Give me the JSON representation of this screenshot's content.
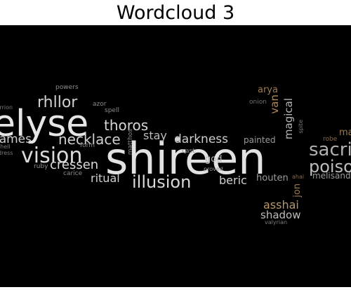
{
  "title": "Wordcloud 3",
  "words": [
    {
      "text": "shireen",
      "color": "#e2e2e2"
    },
    {
      "text": "elyse",
      "color": "#e6e6e6"
    },
    {
      "text": "vision",
      "color": "#dcdcdc"
    },
    {
      "text": "rhllor",
      "color": "#cfcfcf"
    },
    {
      "text": "necklace",
      "color": "#cfcfcf"
    },
    {
      "text": "thoros",
      "color": "#d6d6d6"
    },
    {
      "text": "cressen",
      "color": "#d9d9d9"
    },
    {
      "text": "illusion",
      "color": "#d9d9d9"
    },
    {
      "text": "darkness",
      "color": "#cfcfcf"
    },
    {
      "text": "stay",
      "color": "#bdbdbd"
    },
    {
      "text": "ritual",
      "color": "#cfcfcf"
    },
    {
      "text": "beric",
      "color": "#cfcfcf"
    },
    {
      "text": "flames",
      "color": "#cfcfcf"
    },
    {
      "text": "sacrifice",
      "color": "#b0b0b0"
    },
    {
      "text": "poison",
      "color": "#bdbdbd"
    },
    {
      "text": "melisandre",
      "color": "#9a9a9a"
    },
    {
      "text": "magical",
      "color": "#b5b5b5"
    },
    {
      "text": "van",
      "color": "#b08a5a"
    },
    {
      "text": "arya",
      "color": "#9c7a50"
    },
    {
      "text": "asshai",
      "color": "#b5976a"
    },
    {
      "text": "shadow",
      "color": "#bcbcbc"
    },
    {
      "text": "houten",
      "color": "#9c9c9c"
    },
    {
      "text": "jon",
      "color": "#9c7a50"
    },
    {
      "text": "god",
      "color": "#bcbcbc"
    },
    {
      "text": "painted",
      "color": "#9a9a9a"
    },
    {
      "text": "powers",
      "color": "#8a8a8a"
    },
    {
      "text": "azor",
      "color": "#8a8a8a"
    },
    {
      "text": "spell",
      "color": "#8a8a8a"
    },
    {
      "text": "matthos",
      "color": "#8a8a8a"
    },
    {
      "text": "form",
      "color": "#8a8a8a"
    },
    {
      "text": "ruby",
      "color": "#8a8a8a"
    },
    {
      "text": "carice",
      "color": "#8a8a8a"
    },
    {
      "text": "cast",
      "color": "#8a8a8a"
    },
    {
      "text": "proved",
      "color": "#9a9a9a"
    },
    {
      "text": "onion",
      "color": "#6e6e6e"
    },
    {
      "text": "spite",
      "color": "#7a7a7a"
    },
    {
      "text": "robe",
      "color": "#8a6a46"
    },
    {
      "text": "ahai",
      "color": "#8a6a46"
    },
    {
      "text": "valyrian",
      "color": "#7a7a7a"
    },
    {
      "text": "warrion",
      "color": "#7a7a7a"
    },
    {
      "text": "shell",
      "color": "#7a7a7a"
    },
    {
      "text": "dress",
      "color": "#7a7a7a"
    },
    {
      "text": "mage",
      "color": "#9c7a50"
    }
  ]
}
